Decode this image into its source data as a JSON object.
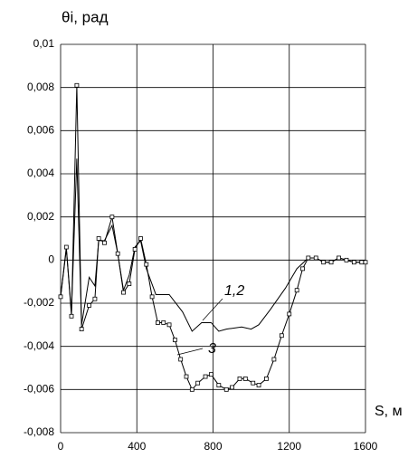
{
  "chart_data": {
    "type": "line",
    "y_label": "θi, рад",
    "x_label": "S, м",
    "xlim": [
      0,
      1600
    ],
    "xticks": [
      0,
      400,
      800,
      1200,
      1600
    ],
    "ylim": [
      -0.008,
      0.01
    ],
    "yticks": [
      {
        "value": -0.008,
        "label": "-0,008"
      },
      {
        "value": -0.006,
        "label": "-0,006"
      },
      {
        "value": -0.004,
        "label": "-0,004"
      },
      {
        "value": -0.002,
        "label": "-0,002"
      },
      0,
      {
        "value": 0.002,
        "label": "0,002"
      },
      {
        "value": 0.004,
        "label": "0,004"
      },
      {
        "value": 0.006,
        "label": "0,006"
      },
      {
        "value": 0.008,
        "label": "0,008"
      },
      {
        "value": 0.01,
        "label": "0,01"
      }
    ],
    "grid": true,
    "series": [
      {
        "name": "1,2",
        "color": "#000000",
        "markers": false,
        "x": [
          0,
          30,
          57,
          85,
          110,
          150,
          180,
          200,
          230,
          270,
          300,
          330,
          360,
          390,
          420,
          450,
          500,
          570,
          640,
          690,
          740,
          790,
          830,
          870,
          950,
          1000,
          1040,
          1100,
          1180,
          1240,
          1300,
          1340,
          1380,
          1420,
          1460,
          1500,
          1540,
          1580,
          1600
        ],
        "values": [
          -0.0017,
          0.0005,
          -0.0024,
          0.0047,
          -0.003,
          -0.0008,
          -0.0012,
          0.0009,
          0.0009,
          0.0016,
          0.0003,
          -0.0014,
          -0.0007,
          0.0006,
          0.0009,
          -0.0004,
          -0.0016,
          -0.0016,
          -0.0024,
          -0.0033,
          -0.0029,
          -0.0029,
          -0.0033,
          -0.0032,
          -0.0031,
          -0.0032,
          -0.003,
          -0.0023,
          -0.0013,
          -0.0004,
          0.0001,
          0.0001,
          -0.0001,
          -0.0001,
          0.0001,
          0.0,
          -0.0001,
          -0.0001,
          -0.0001
        ]
      },
      {
        "name": "3",
        "color": "#000000",
        "markers": true,
        "x": [
          0,
          30,
          57,
          85,
          110,
          150,
          180,
          200,
          230,
          270,
          300,
          330,
          360,
          390,
          420,
          450,
          480,
          510,
          540,
          570,
          600,
          630,
          660,
          690,
          720,
          760,
          790,
          830,
          870,
          900,
          940,
          970,
          1010,
          1040,
          1080,
          1120,
          1160,
          1200,
          1240,
          1270,
          1300,
          1340,
          1380,
          1420,
          1460,
          1500,
          1540,
          1580,
          1600
        ],
        "values": [
          -0.0017,
          0.0006,
          -0.0026,
          0.0081,
          -0.0032,
          -0.0021,
          -0.0018,
          0.001,
          0.0008,
          0.002,
          0.0003,
          -0.0015,
          -0.0011,
          0.0005,
          0.001,
          -0.0002,
          -0.0017,
          -0.0029,
          -0.0029,
          -0.003,
          -0.0037,
          -0.0046,
          -0.0054,
          -0.006,
          -0.0057,
          -0.0054,
          -0.0053,
          -0.0058,
          -0.006,
          -0.0059,
          -0.0055,
          -0.0055,
          -0.0057,
          -0.0058,
          -0.0055,
          -0.0046,
          -0.0035,
          -0.0025,
          -0.0014,
          -0.0004,
          0.0001,
          0.0001,
          -0.0001,
          -0.0001,
          0.0001,
          0.0,
          -0.0001,
          -0.0001,
          -0.0001
        ]
      }
    ]
  }
}
